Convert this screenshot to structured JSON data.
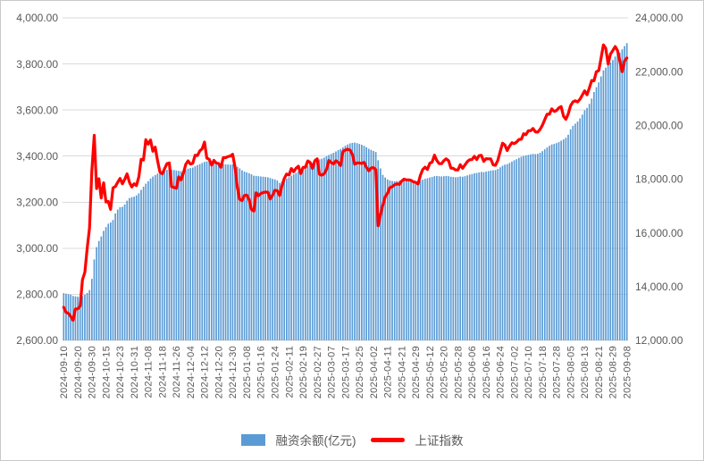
{
  "chart_data": {
    "type": "combo",
    "title": "",
    "x": [
      "2024-09-10",
      "2024-09-11",
      "2024-09-12",
      "2024-09-13",
      "2024-09-18",
      "2024-09-19",
      "2024-09-20",
      "2024-09-23",
      "2024-09-24",
      "2024-09-25",
      "2024-09-26",
      "2024-09-27",
      "2024-09-30",
      "2024-10-08",
      "2024-10-09",
      "2024-10-10",
      "2024-10-11",
      "2024-10-14",
      "2024-10-15",
      "2024-10-16",
      "2024-10-17",
      "2024-10-18",
      "2024-10-21",
      "2024-10-22",
      "2024-10-23",
      "2024-10-24",
      "2024-10-25",
      "2024-10-28",
      "2024-10-29",
      "2024-10-30",
      "2024-10-31",
      "2024-11-01",
      "2024-11-04",
      "2024-11-05",
      "2024-11-06",
      "2024-11-07",
      "2024-11-08",
      "2024-11-11",
      "2024-11-12",
      "2024-11-13",
      "2024-11-14",
      "2024-11-15",
      "2024-11-18",
      "2024-11-19",
      "2024-11-20",
      "2024-11-21",
      "2024-11-22",
      "2024-11-25",
      "2024-11-26",
      "2024-11-27",
      "2024-11-28",
      "2024-11-29",
      "2024-12-02",
      "2024-12-03",
      "2024-12-04",
      "2024-12-05",
      "2024-12-06",
      "2024-12-09",
      "2024-12-10",
      "2024-12-11",
      "2024-12-12",
      "2024-12-13",
      "2024-12-16",
      "2024-12-17",
      "2024-12-18",
      "2024-12-19",
      "2024-12-20",
      "2024-12-23",
      "2024-12-24",
      "2024-12-25",
      "2024-12-26",
      "2024-12-27",
      "2024-12-30",
      "2024-12-31",
      "2025-01-02",
      "2025-01-03",
      "2025-01-06",
      "2025-01-07",
      "2025-01-08",
      "2025-01-09",
      "2025-01-10",
      "2025-01-13",
      "2025-01-14",
      "2025-01-15",
      "2025-01-16",
      "2025-01-17",
      "2025-01-20",
      "2025-01-21",
      "2025-01-22",
      "2025-01-23",
      "2025-01-24",
      "2025-01-27",
      "2025-02-05",
      "2025-02-06",
      "2025-02-07",
      "2025-02-10",
      "2025-02-11",
      "2025-02-12",
      "2025-02-13",
      "2025-02-14",
      "2025-02-17",
      "2025-02-18",
      "2025-02-19",
      "2025-02-20",
      "2025-02-21",
      "2025-02-24",
      "2025-02-25",
      "2025-02-26",
      "2025-02-27",
      "2025-02-28",
      "2025-03-03",
      "2025-03-04",
      "2025-03-05",
      "2025-03-06",
      "2025-03-07",
      "2025-03-10",
      "2025-03-11",
      "2025-03-12",
      "2025-03-13",
      "2025-03-14",
      "2025-03-17",
      "2025-03-18",
      "2025-03-19",
      "2025-03-20",
      "2025-03-21",
      "2025-03-24",
      "2025-03-25",
      "2025-03-26",
      "2025-03-27",
      "2025-03-28",
      "2025-03-31",
      "2025-04-01",
      "2025-04-02",
      "2025-04-03",
      "2025-04-07",
      "2025-04-08",
      "2025-04-09",
      "2025-04-10",
      "2025-04-11",
      "2025-04-14",
      "2025-04-15",
      "2025-04-16",
      "2025-04-17",
      "2025-04-18",
      "2025-04-21",
      "2025-04-22",
      "2025-04-23",
      "2025-04-24",
      "2025-04-25",
      "2025-04-28",
      "2025-04-29",
      "2025-04-30",
      "2025-05-06",
      "2025-05-07",
      "2025-05-08",
      "2025-05-09",
      "2025-05-12",
      "2025-05-13",
      "2025-05-14",
      "2025-05-15",
      "2025-05-16",
      "2025-05-19",
      "2025-05-20",
      "2025-05-21",
      "2025-05-22",
      "2025-05-23",
      "2025-05-26",
      "2025-05-27",
      "2025-05-28",
      "2025-05-29",
      "2025-05-30",
      "2025-06-03",
      "2025-06-04",
      "2025-06-05",
      "2025-06-06",
      "2025-06-09",
      "2025-06-10",
      "2025-06-11",
      "2025-06-12",
      "2025-06-13",
      "2025-06-16",
      "2025-06-17",
      "2025-06-18",
      "2025-06-19",
      "2025-06-20",
      "2025-06-23",
      "2025-06-24",
      "2025-06-25",
      "2025-06-26",
      "2025-06-27",
      "2025-06-30",
      "2025-07-01",
      "2025-07-02",
      "2025-07-03",
      "2025-07-04",
      "2025-07-07",
      "2025-07-08",
      "2025-07-09",
      "2025-07-10",
      "2025-07-11",
      "2025-07-14",
      "2025-07-15",
      "2025-07-16",
      "2025-07-17",
      "2025-07-18",
      "2025-07-21",
      "2025-07-22",
      "2025-07-23",
      "2025-07-24",
      "2025-07-25",
      "2025-07-28",
      "2025-07-29",
      "2025-07-30",
      "2025-07-31",
      "2025-08-01",
      "2025-08-04",
      "2025-08-05",
      "2025-08-06",
      "2025-08-07",
      "2025-08-08",
      "2025-08-11",
      "2025-08-12",
      "2025-08-13",
      "2025-08-14",
      "2025-08-15",
      "2025-08-18",
      "2025-08-19",
      "2025-08-20",
      "2025-08-21",
      "2025-08-22",
      "2025-08-25",
      "2025-08-26",
      "2025-08-27",
      "2025-08-28",
      "2025-08-29",
      "2025-09-01",
      "2025-09-02",
      "2025-09-03",
      "2025-09-04",
      "2025-09-05",
      "2025-09-08"
    ],
    "series": [
      {
        "name": "融资余额(亿元)",
        "type": "bar",
        "axis": "right",
        "color": "#5B9BD5",
        "values": [
          13755,
          13740,
          13720,
          13700,
          13655,
          13640,
          13630,
          13625,
          13645,
          13695,
          13765,
          13870,
          14290,
          15010,
          15470,
          15700,
          15870,
          16075,
          16215,
          16340,
          16390,
          16480,
          16725,
          16865,
          16955,
          16970,
          17055,
          17200,
          17295,
          17330,
          17345,
          17395,
          17470,
          17600,
          17720,
          17830,
          17920,
          18020,
          18095,
          18150,
          18205,
          18245,
          18280,
          18315,
          18345,
          18365,
          18350,
          18335,
          18320,
          18310,
          18295,
          18320,
          18355,
          18390,
          18410,
          18430,
          18480,
          18525,
          18560,
          18600,
          18640,
          18660,
          18670,
          18650,
          18630,
          18610,
          18590,
          18570,
          18560,
          18550,
          18545,
          18540,
          18550,
          18520,
          18460,
          18400,
          18330,
          18280,
          18250,
          18220,
          18180,
          18130,
          18120,
          18110,
          18100,
          18090,
          18080,
          18070,
          18040,
          18010,
          17990,
          17950,
          17860,
          17905,
          17960,
          18020,
          18070,
          18130,
          18180,
          18230,
          18290,
          18330,
          18380,
          18440,
          18510,
          18560,
          18600,
          18650,
          18700,
          18730,
          18760,
          18800,
          18850,
          18900,
          18940,
          18980,
          19030,
          19080,
          19120,
          19180,
          19240,
          19290,
          19330,
          19350,
          19360,
          19340,
          19310,
          19280,
          19240,
          19190,
          19130,
          19090,
          19050,
          19010,
          18700,
          18400,
          18160,
          18060,
          17990,
          17950,
          17930,
          17920,
          17930,
          17940,
          17950,
          17960,
          17950,
          17940,
          17930,
          17920,
          17910,
          17900,
          17940,
          17980,
          18010,
          18030,
          18060,
          18080,
          18110,
          18120,
          18110,
          18100,
          18110,
          18120,
          18110,
          18090,
          18080,
          18070,
          18080,
          18100,
          18090,
          18110,
          18140,
          18170,
          18190,
          18220,
          18230,
          18250,
          18270,
          18260,
          18280,
          18300,
          18320,
          18330,
          18340,
          18380,
          18440,
          18500,
          18540,
          18560,
          18600,
          18650,
          18700,
          18740,
          18790,
          18830,
          18860,
          18880,
          18900,
          18920,
          18940,
          18930,
          18940,
          18980,
          19040,
          19110,
          19180,
          19240,
          19290,
          19310,
          19340,
          19380,
          19430,
          19480,
          19540,
          19650,
          19850,
          19980,
          20060,
          20140,
          20260,
          20400,
          20560,
          20650,
          20800,
          21000,
          21240,
          21420,
          21600,
          21820,
          22050,
          22150,
          22250,
          22340,
          22430,
          22560,
          22680,
          22700,
          22830,
          22950,
          23060
        ]
      },
      {
        "name": "上证指数",
        "type": "line",
        "axis": "left",
        "color": "#FF0000",
        "values": [
          2744,
          2722,
          2717,
          2704,
          2687,
          2736,
          2737,
          2748,
          2863,
          2896,
          3000,
          3088,
          3336,
          3490,
          3259,
          3302,
          3218,
          3284,
          3201,
          3203,
          3169,
          3262,
          3268,
          3286,
          3303,
          3280,
          3299,
          3323,
          3286,
          3266,
          3280,
          3272,
          3310,
          3386,
          3383,
          3471,
          3452,
          3470,
          3421,
          3439,
          3379,
          3331,
          3323,
          3346,
          3367,
          3370,
          3267,
          3264,
          3260,
          3310,
          3296,
          3326,
          3364,
          3379,
          3365,
          3369,
          3404,
          3402,
          3423,
          3432,
          3461,
          3391,
          3386,
          3361,
          3382,
          3370,
          3368,
          3351,
          3393,
          3393,
          3398,
          3400,
          3408,
          3352,
          3263,
          3212,
          3207,
          3229,
          3231,
          3212,
          3169,
          3161,
          3241,
          3228,
          3237,
          3242,
          3244,
          3243,
          3214,
          3230,
          3252,
          3250,
          3229,
          3271,
          3303,
          3322,
          3318,
          3346,
          3332,
          3347,
          3356,
          3324,
          3351,
          3351,
          3379,
          3373,
          3346,
          3380,
          3388,
          3321,
          3317,
          3324,
          3342,
          3381,
          3372,
          3366,
          3380,
          3372,
          3359,
          3420,
          3426,
          3430,
          3426,
          3408,
          3365,
          3370,
          3370,
          3368,
          3373,
          3351,
          3336,
          3348,
          3350,
          3342,
          3097,
          3146,
          3187,
          3224,
          3239,
          3263,
          3267,
          3276,
          3280,
          3277,
          3291,
          3300,
          3297,
          3297,
          3295,
          3288,
          3286,
          3279,
          3316,
          3342,
          3352,
          3342,
          3369,
          3374,
          3404,
          3381,
          3367,
          3367,
          3380,
          3388,
          3380,
          3348,
          3347,
          3340,
          3340,
          3363,
          3347,
          3362,
          3376,
          3384,
          3385,
          3399,
          3385,
          3402,
          3403,
          3377,
          3389,
          3388,
          3388,
          3362,
          3360,
          3381,
          3420,
          3456,
          3448,
          3424,
          3444,
          3458,
          3454,
          3461,
          3472,
          3473,
          3497,
          3493,
          3510,
          3510,
          3520,
          3505,
          3504,
          3516,
          3534,
          3559,
          3582,
          3582,
          3605,
          3594,
          3598,
          3609,
          3615,
          3573,
          3560,
          3583,
          3618,
          3635,
          3640,
          3635,
          3647,
          3665,
          3683,
          3666,
          3696,
          3728,
          3727,
          3766,
          3771,
          3826,
          3883,
          3868,
          3800,
          3843,
          3858,
          3876,
          3858,
          3813,
          3766,
          3813,
          3826
        ]
      }
    ],
    "left_axis": {
      "min": 2600,
      "max": 4000,
      "step": 200
    },
    "right_axis": {
      "min": 12000,
      "max": 24000,
      "step": 2000
    },
    "x_tick_interval": 6,
    "grid": true,
    "grid_color": "#d9d9d9",
    "tick_text_color": "#595959",
    "legend_position": "bottom"
  }
}
